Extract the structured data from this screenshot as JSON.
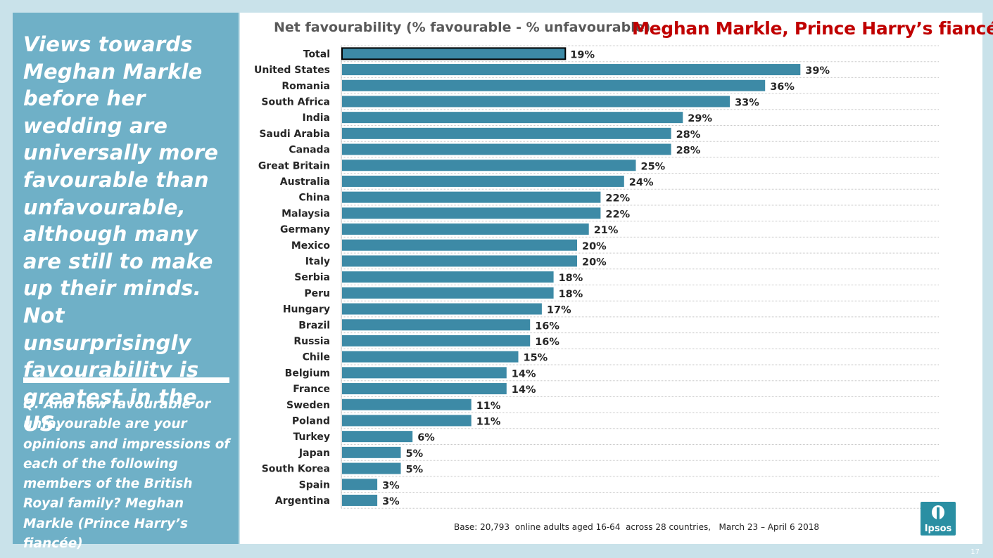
{
  "left_panel": {
    "headline": "Views towards Meghan Markle before her wedding are universally more favourable than unfavourable, although many are still to make up their minds. Not unsurprisingly favourability is greatest in the US.",
    "question": "Q. And how favourable or unfavourable are your opinions and impressions of each of the following members of the British Royal family? Meghan Markle (Prince Harry’s fiancée)"
  },
  "page_title": "Meghan Markle, Prince Harry’s fiancée",
  "chart_data": {
    "type": "bar",
    "orientation": "horizontal",
    "title": "Net favourability (% favourable - % unfavourable)",
    "categories": [
      "Total",
      "United States",
      "Romania",
      "South Africa",
      "India",
      "Saudi Arabia",
      "Canada",
      "Great Britain",
      "Australia",
      "China",
      "Malaysia",
      "Germany",
      "Mexico",
      "Italy",
      "Serbia",
      "Peru",
      "Hungary",
      "Brazil",
      "Russia",
      "Chile",
      "Belgium",
      "France",
      "Sweden",
      "Poland",
      "Turkey",
      "Japan",
      "South Korea",
      "Spain",
      "Argentina"
    ],
    "values": [
      19,
      39,
      36,
      33,
      29,
      28,
      28,
      25,
      24,
      22,
      22,
      21,
      20,
      20,
      18,
      18,
      17,
      16,
      16,
      15,
      14,
      14,
      11,
      11,
      6,
      5,
      5,
      3,
      3
    ],
    "labels": [
      "19%",
      "39%",
      "36%",
      "33%",
      "29%",
      "28%",
      "28%",
      "25%",
      "24%",
      "22%",
      "22%",
      "21%",
      "20%",
      "20%",
      "18%",
      "18%",
      "17%",
      "16%",
      "16%",
      "15%",
      "14%",
      "14%",
      "11%",
      "11%",
      "6%",
      "5%",
      "5%",
      "3%",
      "3%"
    ],
    "highlight_category": "Total",
    "bar_color": "#3d8aa6",
    "highlight_outline_color": "#000000",
    "gridlines": true,
    "xlim": [
      0,
      50
    ]
  },
  "footnote": "Base: 20,793  online adults aged 16-64  across 28 countries,   March 23 – April 6 2018",
  "logo": {
    "text": "Ipsos"
  },
  "page_number": "17"
}
